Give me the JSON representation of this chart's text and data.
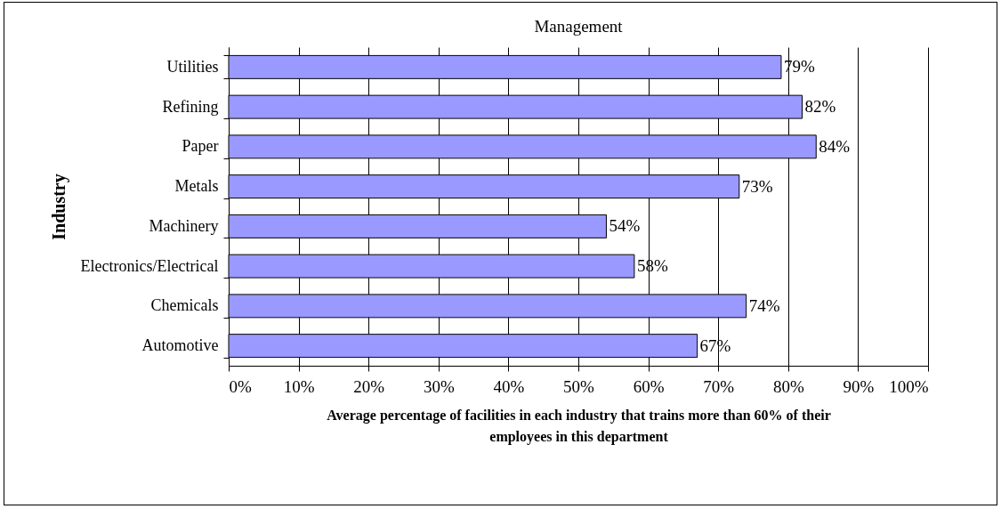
{
  "chart_data": {
    "type": "bar",
    "orientation": "horizontal",
    "title": "Management",
    "ylabel": "Industry",
    "xlabel": "Average percentage of facilities in each industry that trains more than 60%  of their employees in this department",
    "categories": [
      "Utilities",
      "Refining",
      "Paper",
      "Metals",
      "Machinery",
      "Electronics/Electrical",
      "Chemicals",
      "Automotive"
    ],
    "values": [
      79,
      82,
      84,
      73,
      54,
      58,
      74,
      67
    ],
    "value_labels": [
      "79%",
      "82%",
      "84%",
      "73%",
      "54%",
      "58%",
      "74%",
      "67%"
    ],
    "color": "#9999ff",
    "xlim": [
      0,
      100
    ],
    "xticks": [
      {
        "value": 0,
        "label": "0%"
      },
      {
        "value": 10,
        "label": "10%"
      },
      {
        "value": 20,
        "label": "20%"
      },
      {
        "value": 30,
        "label": "30%"
      },
      {
        "value": 40,
        "label": "40%"
      },
      {
        "value": 50,
        "label": "50%"
      },
      {
        "value": 60,
        "label": "60%"
      },
      {
        "value": 70,
        "label": "70%"
      },
      {
        "value": 80,
        "label": "80%"
      },
      {
        "value": 90,
        "label": "90%"
      },
      {
        "value": 100,
        "label": "100%"
      }
    ],
    "grid": "x"
  }
}
